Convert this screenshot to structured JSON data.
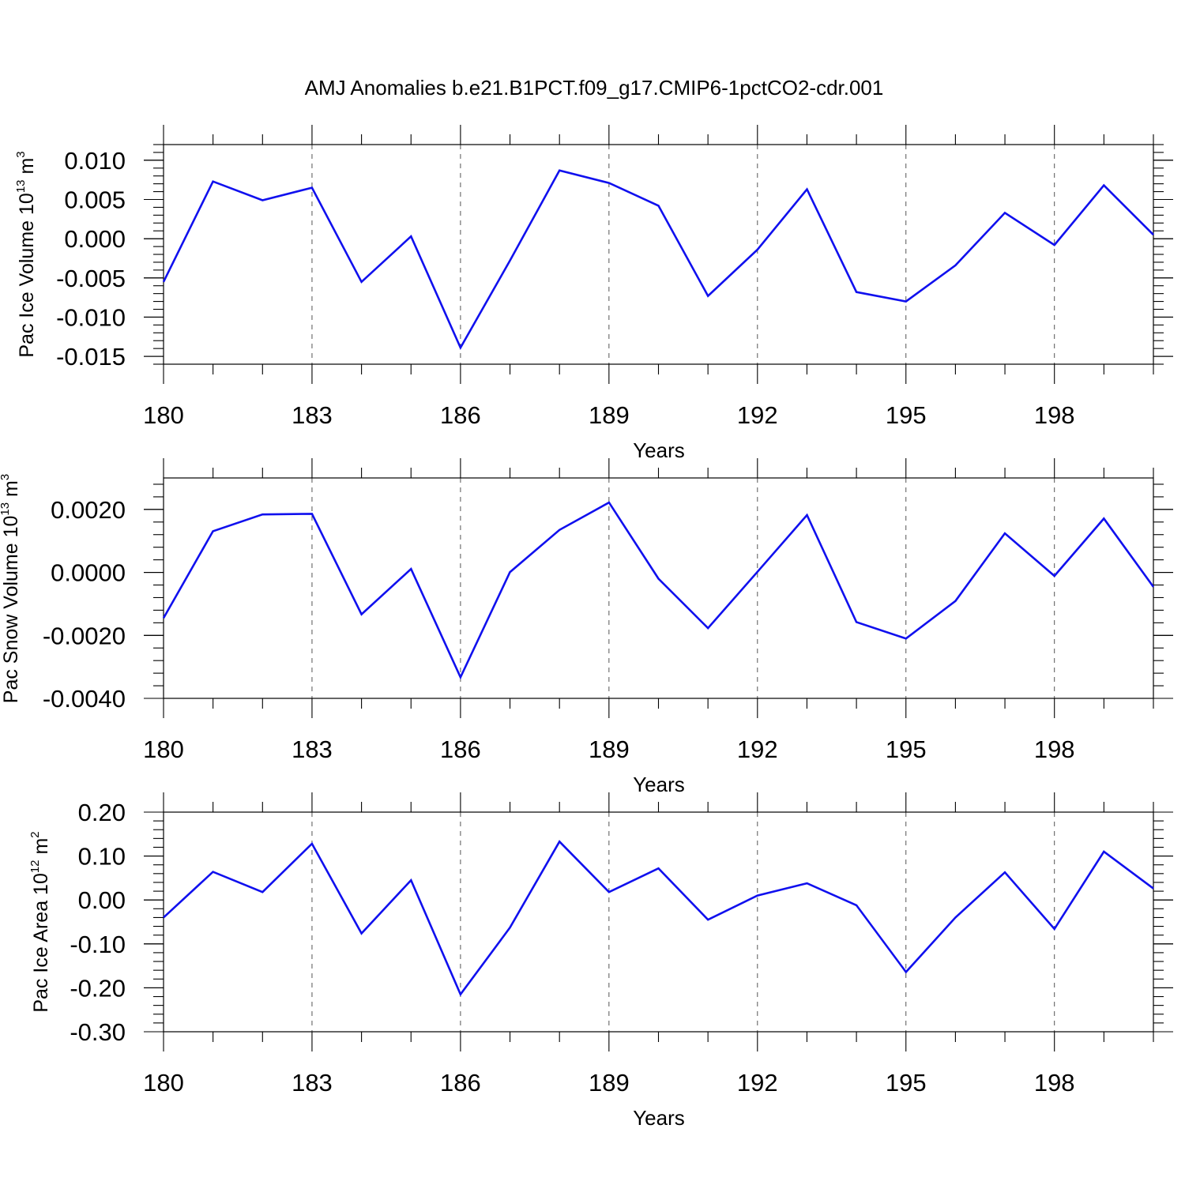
{
  "title": "AMJ Anomalies b.e21.B1PCT.f09_g17.CMIP6-1pctCO2-cdr.001",
  "line_color": "#1010ee",
  "chart_data": [
    {
      "type": "line",
      "xlabel": "Years",
      "ylabel": {
        "prefix": "Pac Ice Volume 10",
        "exp": "13",
        "unit": " m",
        "unit_exp": "3"
      },
      "x": [
        180,
        181,
        182,
        183,
        184,
        185,
        186,
        187,
        188,
        189,
        190,
        191,
        192,
        193,
        194,
        195,
        196,
        197,
        198,
        199,
        200
      ],
      "xlim": [
        180,
        200
      ],
      "xticks": [
        "180",
        "183",
        "186",
        "189",
        "192",
        "195",
        "198"
      ],
      "ylim": [
        -0.016,
        0.012
      ],
      "yticks": [
        0.01,
        0.005,
        0.0,
        -0.005,
        -0.01,
        -0.015
      ],
      "ytick_labels": [
        "0.010",
        "0.005",
        "0.000",
        "-0.005",
        "-0.010",
        "-0.015"
      ],
      "y": [
        -0.0055,
        0.0073,
        0.0049,
        0.0065,
        -0.0055,
        0.0003,
        -0.0139,
        -0.0028,
        0.0087,
        0.0071,
        0.0042,
        -0.0073,
        -0.0014,
        0.0063,
        -0.0068,
        -0.008,
        -0.0034,
        0.0033,
        -0.0008,
        0.0068,
        0.0005
      ],
      "grid": "vertical dashed at labeled x ticks"
    },
    {
      "type": "line",
      "xlabel": "Years",
      "ylabel": {
        "prefix": "Pac Snow Volume 10",
        "exp": "13",
        "unit": " m",
        "unit_exp": "3"
      },
      "x": [
        180,
        181,
        182,
        183,
        184,
        185,
        186,
        187,
        188,
        189,
        190,
        191,
        192,
        193,
        194,
        195,
        196,
        197,
        198,
        199,
        200
      ],
      "xlim": [
        180,
        200
      ],
      "xticks": [
        "180",
        "183",
        "186",
        "189",
        "192",
        "195",
        "198"
      ],
      "ylim": [
        -0.004,
        0.003
      ],
      "yticks": [
        0.002,
        0.0,
        -0.002,
        -0.004
      ],
      "ytick_labels": [
        "0.0020",
        "0.0000",
        "-0.0020",
        "-0.0040"
      ],
      "y": [
        -0.00145,
        0.00131,
        0.00184,
        0.00186,
        -0.00133,
        0.00011,
        -0.00333,
        1e-05,
        0.00135,
        0.00222,
        -0.0002,
        -0.00177,
        2e-05,
        0.00182,
        -0.00158,
        -0.0021,
        -0.00091,
        0.00124,
        -0.00011,
        0.00171,
        -0.00046
      ],
      "grid": "vertical dashed at labeled x ticks"
    },
    {
      "type": "line",
      "xlabel": "Years",
      "ylabel": {
        "prefix": "Pac Ice Area 10",
        "exp": "12",
        "unit": " m",
        "unit_exp": "2"
      },
      "x": [
        180,
        181,
        182,
        183,
        184,
        185,
        186,
        187,
        188,
        189,
        190,
        191,
        192,
        193,
        194,
        195,
        196,
        197,
        198,
        199,
        200
      ],
      "xlim": [
        180,
        200
      ],
      "xticks": [
        "180",
        "183",
        "186",
        "189",
        "192",
        "195",
        "198"
      ],
      "ylim": [
        -0.3,
        0.2
      ],
      "yticks": [
        0.2,
        0.1,
        0.0,
        -0.1,
        -0.2,
        -0.3
      ],
      "ytick_labels": [
        "0.20",
        "0.10",
        "0.00",
        "-0.10",
        "-0.20",
        "-0.30"
      ],
      "y": [
        -0.04,
        0.064,
        0.018,
        0.128,
        -0.076,
        0.045,
        -0.215,
        -0.063,
        0.133,
        0.018,
        0.072,
        -0.045,
        0.01,
        0.038,
        -0.012,
        -0.164,
        -0.04,
        0.063,
        -0.066,
        0.11,
        0.026
      ],
      "grid": "vertical dashed at labeled x ticks"
    }
  ]
}
